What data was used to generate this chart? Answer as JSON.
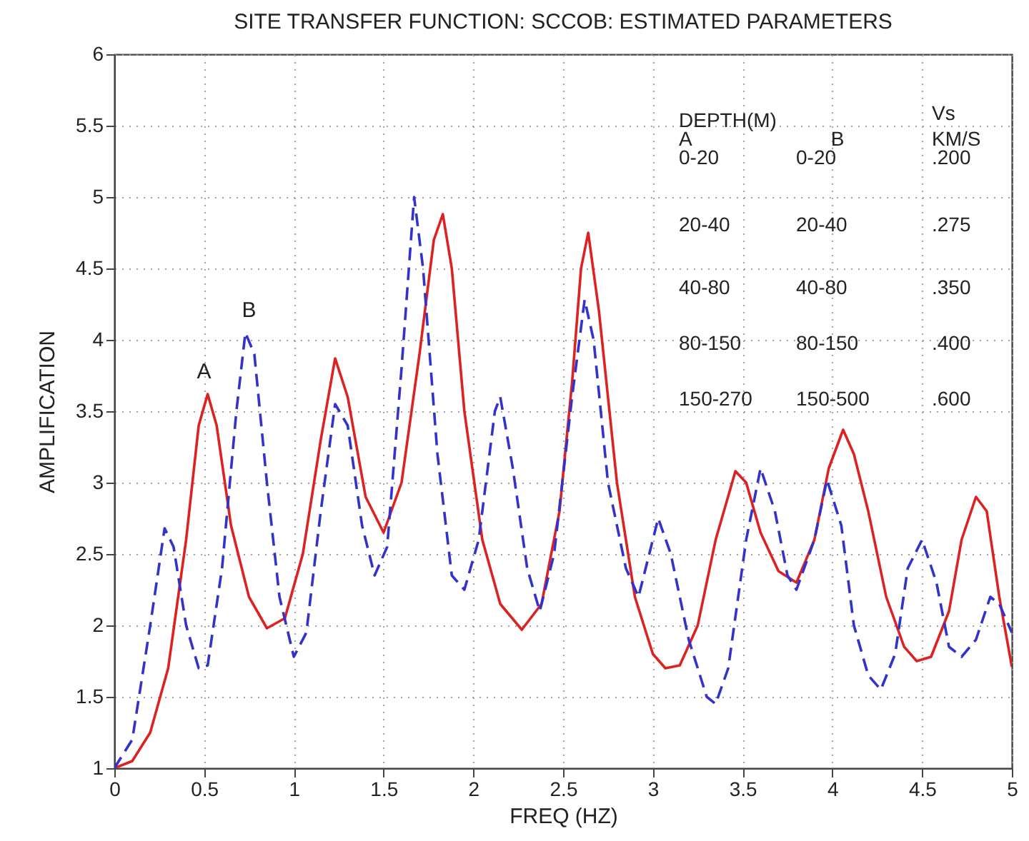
{
  "chart_data": {
    "type": "line",
    "title": "SITE TRANSFER FUNCTION: SCCOB: ESTIMATED PARAMETERS",
    "xlabel": "FREQ (HZ)",
    "ylabel": "AMPLIFICATION",
    "xlim": [
      0,
      5
    ],
    "xticks": [
      0,
      0.5,
      1,
      1.5,
      2,
      2.5,
      3,
      3.5,
      4,
      4.5,
      5
    ],
    "ylim": [
      1,
      6
    ],
    "yticks": [
      1,
      1.5,
      2,
      2.5,
      3,
      3.5,
      4,
      4.5,
      5,
      5.5,
      6
    ],
    "grid": true,
    "series": [
      {
        "color": "#dd2222",
        "line_style": "solid",
        "x": [
          0,
          0.1,
          0.2,
          0.3,
          0.4,
          0.47,
          0.52,
          0.57,
          0.65,
          0.75,
          0.85,
          0.95,
          1.05,
          1.15,
          1.23,
          1.3,
          1.4,
          1.5,
          1.6,
          1.7,
          1.78,
          1.83,
          1.88,
          1.95,
          2.05,
          2.15,
          2.27,
          2.38,
          2.48,
          2.55,
          2.6,
          2.64,
          2.7,
          2.8,
          2.9,
          3.0,
          3.07,
          3.15,
          3.25,
          3.35,
          3.46,
          3.52,
          3.6,
          3.7,
          3.8,
          3.9,
          3.98,
          4.06,
          4.12,
          4.2,
          4.3,
          4.4,
          4.47,
          4.55,
          4.65,
          4.72,
          4.8,
          4.86,
          4.93,
          5
        ],
        "values": [
          1,
          1.05,
          1.25,
          1.7,
          2.6,
          3.4,
          3.62,
          3.4,
          2.7,
          2.2,
          1.98,
          2.05,
          2.5,
          3.3,
          3.87,
          3.6,
          2.9,
          2.65,
          3.0,
          3.9,
          4.7,
          4.88,
          4.5,
          3.5,
          2.6,
          2.15,
          1.97,
          2.15,
          2.8,
          3.7,
          4.5,
          4.75,
          4.2,
          3.0,
          2.2,
          1.8,
          1.7,
          1.72,
          2.0,
          2.6,
          3.08,
          3.0,
          2.65,
          2.38,
          2.3,
          2.6,
          3.1,
          3.37,
          3.2,
          2.8,
          2.2,
          1.85,
          1.75,
          1.78,
          2.1,
          2.6,
          2.9,
          2.8,
          2.2,
          1.71
        ]
      },
      {
        "color": "#3333cc",
        "line_style": "dashed",
        "x": [
          0,
          0.1,
          0.2,
          0.28,
          0.33,
          0.4,
          0.47,
          0.52,
          0.6,
          0.68,
          0.73,
          0.78,
          0.85,
          0.92,
          1.0,
          1.07,
          1.15,
          1.23,
          1.3,
          1.38,
          1.45,
          1.52,
          1.6,
          1.67,
          1.72,
          1.8,
          1.88,
          1.95,
          2.03,
          2.12,
          2.15,
          2.22,
          2.3,
          2.37,
          2.45,
          2.55,
          2.62,
          2.67,
          2.75,
          2.85,
          2.92,
          3.0,
          3.03,
          3.1,
          3.2,
          3.3,
          3.35,
          3.42,
          3.52,
          3.6,
          3.68,
          3.75,
          3.8,
          3.9,
          3.97,
          4.05,
          4.12,
          4.2,
          4.27,
          4.35,
          4.42,
          4.5,
          4.58,
          4.65,
          4.72,
          4.8,
          4.88,
          4.93,
          5
        ],
        "values": [
          1,
          1.2,
          2.0,
          2.68,
          2.55,
          2.0,
          1.7,
          1.72,
          2.4,
          3.5,
          4.05,
          3.9,
          3.0,
          2.2,
          1.78,
          1.95,
          2.8,
          3.55,
          3.4,
          2.7,
          2.35,
          2.55,
          3.8,
          5.0,
          4.5,
          3.2,
          2.35,
          2.25,
          2.6,
          3.5,
          3.6,
          3.1,
          2.4,
          2.1,
          2.5,
          3.6,
          4.28,
          4.0,
          3.0,
          2.4,
          2.2,
          2.6,
          2.75,
          2.5,
          1.9,
          1.5,
          1.45,
          1.7,
          2.6,
          3.1,
          2.8,
          2.35,
          2.25,
          2.6,
          3.02,
          2.7,
          2.0,
          1.65,
          1.55,
          1.8,
          2.4,
          2.6,
          2.3,
          1.85,
          1.78,
          1.9,
          2.2,
          2.15,
          1.95
        ]
      }
    ],
    "annotations": [
      {
        "text": "A",
        "x": 0.5,
        "y": 3.62
      },
      {
        "text": "B",
        "x": 0.75,
        "y": 4.05
      },
      "DEPTH(M)",
      "A",
      "B",
      "Vs",
      "KM/S",
      "0-20",
      "0-20",
      ".200",
      "20-40",
      "20-40",
      ".275",
      "40-80",
      "40-80",
      ".350",
      "80-150",
      "80-150",
      ".400",
      "150-270",
      "150-500",
      ".600"
    ]
  }
}
